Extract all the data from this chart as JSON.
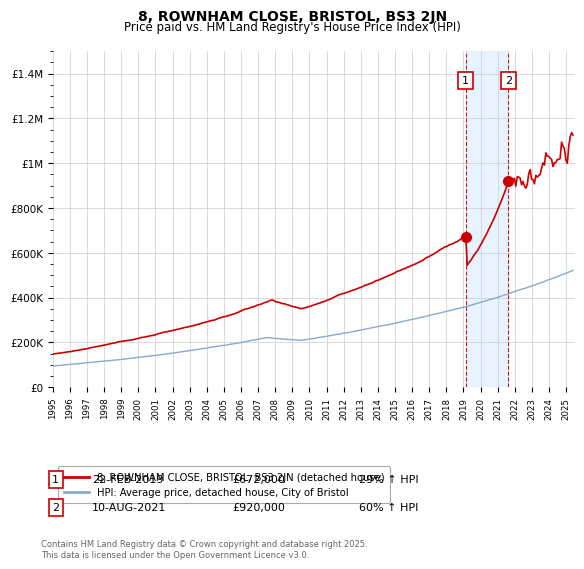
{
  "title": "8, ROWNHAM CLOSE, BRISTOL, BS3 2JN",
  "subtitle": "Price paid vs. HM Land Registry's House Price Index (HPI)",
  "ylim": [
    0,
    1500000
  ],
  "yticks": [
    0,
    200000,
    400000,
    600000,
    800000,
    1000000,
    1200000,
    1400000
  ],
  "ytick_labels": [
    "£0",
    "£200K",
    "£400K",
    "£600K",
    "£800K",
    "£1M",
    "£1.2M",
    "£1.4M"
  ],
  "xlim": [
    1995,
    2025.5
  ],
  "line1_color": "#cc0000",
  "line2_color": "#88aacc",
  "vline_color": "#cc0000",
  "vline_style": "--",
  "shade_color": "#ddeeff",
  "annotation1": {
    "label": "1",
    "date": "22-FEB-2019",
    "price": "£672,000",
    "pct": "29% ↑ HPI",
    "year": 2019.13
  },
  "annotation2": {
    "label": "2",
    "date": "10-AUG-2021",
    "price": "£920,000",
    "pct": "60% ↑ HPI",
    "year": 2021.62
  },
  "legend_line1": "8, ROWNHAM CLOSE, BRISTOL, BS3 2JN (detached house)",
  "legend_line2": "HPI: Average price, detached house, City of Bristol",
  "footer": "Contains HM Land Registry data © Crown copyright and database right 2025.\nThis data is licensed under the Open Government Licence v3.0.",
  "background_color": "#ffffff",
  "grid_color": "#cccccc",
  "title_fontsize": 10,
  "subtitle_fontsize": 8.5,
  "axis_fontsize": 7.5
}
